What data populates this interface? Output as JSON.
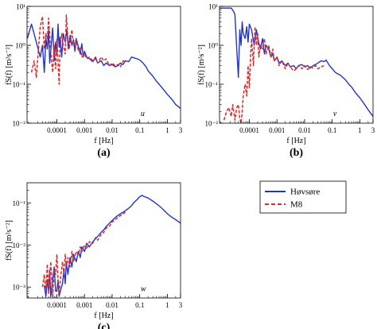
{
  "chart_data": [
    {
      "panel_id": "a",
      "panel_label": "(a)",
      "type": "line",
      "scale": "log-log",
      "xlabel": "f [Hz]",
      "ylabel": "fS(f) [m²s⁻²]",
      "annotation": "u",
      "xlim": [
        8.3e-06,
        3
      ],
      "ylim": [
        0.01,
        10
      ],
      "xticks": [
        0.0001,
        0.001,
        0.01,
        0.1,
        1,
        3
      ],
      "xtick_labels": [
        "0.0001",
        "0.001",
        "0.01",
        "0.1",
        "1",
        "3"
      ],
      "yticks": [
        0.01,
        0.1,
        1,
        10
      ],
      "ytick_labels": [
        "10⁻²",
        "10⁻¹",
        "10⁰",
        "10¹"
      ],
      "series": [
        {
          "name": "Høvsøre",
          "color": "#1f35c7",
          "style": "solid",
          "x": [
            8.5e-06,
            1.2e-05,
            1.8e-05,
            2.5e-05,
            3e-05,
            3.5e-05,
            4e-05,
            4.5e-05,
            5e-05,
            5.5e-05,
            6e-05,
            7e-05,
            8e-05,
            9e-05,
            0.0001,
            0.00011,
            0.00012,
            0.00013,
            0.00015,
            0.00017,
            0.0002,
            0.00023,
            0.00026,
            0.0003,
            0.00035,
            0.0004,
            0.00045,
            0.0005,
            0.0006,
            0.0007,
            0.0008,
            0.0009,
            0.001,
            0.0012,
            0.0015,
            0.002,
            0.0025,
            0.003,
            0.004,
            0.005,
            0.006,
            0.008,
            0.01,
            0.013,
            0.016,
            0.02,
            0.025,
            0.03,
            0.04,
            0.05,
            0.06,
            0.08,
            0.1,
            0.13,
            0.17,
            0.2,
            0.3,
            0.4,
            0.5,
            0.7,
            1,
            1.5,
            2,
            3
          ],
          "y": [
            1.5,
            3.5,
            1.2,
            0.5,
            1.0,
            0.2,
            1.5,
            0.8,
            2.5,
            0.35,
            0.7,
            2.8,
            0.4,
            1.2,
            0.6,
            3.5,
            0.9,
            1.6,
            0.5,
            2.0,
            1.2,
            2.5,
            0.8,
            1.8,
            1.0,
            1.4,
            0.7,
            1.5,
            0.9,
            0.6,
            1.1,
            0.5,
            0.7,
            0.5,
            0.45,
            0.38,
            0.5,
            0.35,
            0.4,
            0.3,
            0.35,
            0.3,
            0.32,
            0.28,
            0.3,
            0.35,
            0.32,
            0.4,
            0.38,
            0.5,
            0.48,
            0.45,
            0.42,
            0.35,
            0.28,
            0.22,
            0.16,
            0.12,
            0.1,
            0.075,
            0.055,
            0.04,
            0.03,
            0.024
          ]
        },
        {
          "name": "M8",
          "color": "#d92b2b",
          "style": "dashed",
          "x": [
            1.2e-05,
            1.5e-05,
            1.8e-05,
            2.2e-05,
            2.5e-05,
            3e-05,
            3.5e-05,
            4e-05,
            4.5e-05,
            5e-05,
            6e-05,
            7e-05,
            8e-05,
            9e-05,
            0.0001,
            0.00011,
            0.00012,
            0.00013,
            0.00015,
            0.00017,
            0.0002,
            0.00022,
            0.00025,
            0.00028,
            0.0003,
            0.00035,
            0.0004,
            0.0005,
            0.0006,
            0.0007,
            0.0008,
            0.001,
            0.0012,
            0.0015,
            0.002,
            0.0025,
            0.003,
            0.004,
            0.005,
            0.006,
            0.008,
            0.01,
            0.013,
            0.016,
            0.02,
            0.025,
            0.03
          ],
          "y": [
            0.2,
            0.4,
            0.15,
            1.0,
            3.0,
            5.5,
            0.8,
            2.0,
            1.5,
            5.0,
            0.7,
            0.2,
            1.0,
            0.25,
            1.5,
            0.35,
            0.1,
            0.9,
            2.0,
            1.0,
            0.6,
            6.0,
            1.5,
            0.8,
            1.2,
            2.5,
            1.0,
            1.4,
            0.7,
            0.9,
            0.5,
            0.6,
            0.45,
            0.5,
            0.4,
            0.45,
            0.35,
            0.5,
            0.4,
            0.45,
            0.3,
            0.35,
            0.3,
            0.32,
            0.28,
            0.4,
            0.38
          ]
        }
      ]
    },
    {
      "panel_id": "b",
      "panel_label": "(b)",
      "type": "line",
      "scale": "log-log",
      "xlabel": "f [Hz]",
      "ylabel": "fS(f) [m²s⁻²]",
      "annotation": "v",
      "xlim": [
        8.3e-06,
        3
      ],
      "ylim": [
        0.01,
        10
      ],
      "xticks": [
        0.0001,
        0.001,
        0.01,
        0.1,
        1,
        3
      ],
      "xtick_labels": [
        "0.0001",
        "0.001",
        "0.01",
        "0.1",
        "1",
        "3"
      ],
      "yticks": [
        0.01,
        0.1,
        1,
        10
      ],
      "ytick_labels": [
        "10⁻²",
        "10⁻¹",
        "10⁰",
        "10¹"
      ],
      "series": [
        {
          "name": "Høvsøre",
          "color": "#1f35c7",
          "style": "solid",
          "x": [
            8.5e-06,
            1.2e-05,
            1.5e-05,
            1.8e-05,
            2.2e-05,
            2.5e-05,
            2.8e-05,
            3e-05,
            3.5e-05,
            4e-05,
            4.5e-05,
            5e-05,
            5.5e-05,
            6e-05,
            7e-05,
            8e-05,
            9e-05,
            0.0001,
            0.00012,
            0.00015,
            0.00018,
            0.0002,
            0.00025,
            0.0003,
            0.00035,
            0.0004,
            0.0005,
            0.0006,
            0.0007,
            0.0008,
            0.001,
            0.0012,
            0.0015,
            0.002,
            0.0025,
            0.003,
            0.004,
            0.005,
            0.006,
            0.008,
            0.01,
            0.013,
            0.016,
            0.02,
            0.025,
            0.03,
            0.04,
            0.05,
            0.06,
            0.07,
            0.08,
            0.1,
            0.13,
            0.17,
            0.2,
            0.3,
            0.4,
            0.5,
            0.7,
            1,
            1.5,
            2,
            3
          ],
          "y": [
            9,
            9,
            9,
            9,
            9,
            8,
            7,
            6,
            0.8,
            0.15,
            2.5,
            1.0,
            4.0,
            2.0,
            1.5,
            3.0,
            1.2,
            3.5,
            2.5,
            1.0,
            2.5,
            1.5,
            0.8,
            1.5,
            0.6,
            1.0,
            0.8,
            0.5,
            0.6,
            0.4,
            0.5,
            0.35,
            0.4,
            0.3,
            0.35,
            0.28,
            0.3,
            0.25,
            0.3,
            0.32,
            0.28,
            0.3,
            0.26,
            0.3,
            0.32,
            0.35,
            0.4,
            0.38,
            0.42,
            0.35,
            0.3,
            0.25,
            0.2,
            0.18,
            0.17,
            0.13,
            0.1,
            0.085,
            0.06,
            0.045,
            0.03,
            0.022,
            0.015
          ]
        },
        {
          "name": "M8",
          "color": "#d92b2b",
          "style": "dashed",
          "x": [
            1.2e-05,
            1.5e-05,
            1.8e-05,
            2.2e-05,
            2.5e-05,
            3e-05,
            3.5e-05,
            4e-05,
            4.5e-05,
            5e-05,
            5.5e-05,
            6e-05,
            7e-05,
            8e-05,
            9e-05,
            0.0001,
            0.00011,
            0.00012,
            0.00014,
            0.00016,
            0.00018,
            0.0002,
            0.00022,
            0.00025,
            0.0003,
            0.00035,
            0.0004,
            0.0005,
            0.0006,
            0.0007,
            0.0008,
            0.001,
            0.0012,
            0.0015,
            0.002,
            0.0025,
            0.003,
            0.004,
            0.005,
            0.006,
            0.008,
            0.01,
            0.013,
            0.016,
            0.02,
            0.025,
            0.03,
            0.04,
            0.05
          ],
          "y": [
            0.012,
            0.02,
            0.025,
            0.015,
            0.03,
            0.012,
            0.025,
            0.03,
            0.013,
            0.01,
            0.02,
            0.05,
            0.1,
            0.05,
            0.3,
            0.08,
            0.5,
            1.5,
            0.3,
            3.0,
            1.0,
            2.0,
            0.5,
            1.0,
            0.8,
            1.5,
            0.6,
            1.0,
            0.5,
            0.8,
            0.4,
            0.5,
            0.3,
            0.4,
            0.25,
            0.35,
            0.28,
            0.22,
            0.25,
            0.3,
            0.25,
            0.3,
            0.24,
            0.28,
            0.26,
            0.3,
            0.25,
            0.28,
            0.3
          ]
        }
      ]
    },
    {
      "panel_id": "c",
      "panel_label": "(c)",
      "type": "line",
      "scale": "log-log",
      "xlabel": "f [Hz]",
      "ylabel": "fS(f) [m²s⁻²]",
      "annotation": "w",
      "xlim": [
        8.3e-06,
        3
      ],
      "ylim": [
        0.00055,
        0.3
      ],
      "xticks": [
        0.0001,
        0.001,
        0.01,
        0.1,
        1,
        3
      ],
      "xtick_labels": [
        "0.0001",
        "0.001",
        "0.01",
        "0.1",
        "1",
        "3"
      ],
      "yticks": [
        0.001,
        0.01,
        0.1
      ],
      "ytick_labels": [
        "10⁻³",
        "10⁻²",
        "10⁻¹"
      ],
      "series": [
        {
          "name": "Høvsøre",
          "color": "#1f35c7",
          "style": "solid",
          "x": [
            3.5e-05,
            4e-05,
            4.5e-05,
            5e-05,
            5.5e-05,
            6e-05,
            7e-05,
            8e-05,
            9e-05,
            0.0001,
            0.00011,
            0.00012,
            0.00014,
            0.00016,
            0.00018,
            0.0002,
            0.00022,
            0.00025,
            0.0003,
            0.00035,
            0.0004,
            0.0005,
            0.0006,
            0.0007,
            0.0008,
            0.001,
            0.0012,
            0.0015,
            0.002,
            0.0025,
            0.003,
            0.004,
            0.005,
            0.006,
            0.008,
            0.01,
            0.013,
            0.016,
            0.02,
            0.025,
            0.03,
            0.04,
            0.05,
            0.06,
            0.08,
            0.1,
            0.12,
            0.15,
            0.2,
            0.3,
            0.5,
            0.7,
            1,
            1.5,
            2,
            3
          ],
          "y": [
            0.0011,
            0.0006,
            0.0015,
            0.0008,
            0.0025,
            0.0006,
            0.0015,
            0.003,
            0.0008,
            0.0008,
            0.0015,
            0.0006,
            0.0009,
            0.0012,
            0.0025,
            0.0012,
            0.004,
            0.002,
            0.005,
            0.003,
            0.006,
            0.004,
            0.007,
            0.005,
            0.009,
            0.007,
            0.011,
            0.009,
            0.012,
            0.014,
            0.016,
            0.02,
            0.023,
            0.027,
            0.033,
            0.038,
            0.045,
            0.05,
            0.055,
            0.06,
            0.065,
            0.075,
            0.085,
            0.1,
            0.12,
            0.14,
            0.15,
            0.14,
            0.13,
            0.11,
            0.085,
            0.07,
            0.055,
            0.045,
            0.04,
            0.033
          ]
        },
        {
          "name": "M8",
          "color": "#d92b2b",
          "style": "dashed",
          "x": [
            3e-05,
            3.5e-05,
            4e-05,
            4.5e-05,
            5e-05,
            5.5e-05,
            6e-05,
            7e-05,
            8e-05,
            9e-05,
            0.0001,
            0.00011,
            0.00012,
            0.00014,
            0.00016,
            0.00018,
            0.0002,
            0.00022,
            0.00025,
            0.0003,
            0.00035,
            0.0004,
            0.0005,
            0.0006,
            0.0007,
            0.0008,
            0.001,
            0.0012,
            0.0015,
            0.002,
            0.0025,
            0.003,
            0.004,
            0.005,
            0.006,
            0.008,
            0.01,
            0.013,
            0.016,
            0.02,
            0.025,
            0.03
          ],
          "y": [
            0.001,
            0.002,
            0.0008,
            0.0035,
            0.0007,
            0.0015,
            0.004,
            0.0006,
            0.0025,
            0.002,
            0.006,
            0.0015,
            0.0007,
            0.002,
            0.004,
            0.002,
            0.006,
            0.003,
            0.005,
            0.003,
            0.007,
            0.004,
            0.007,
            0.006,
            0.009,
            0.007,
            0.01,
            0.008,
            0.012,
            0.011,
            0.015,
            0.013,
            0.018,
            0.02,
            0.025,
            0.028,
            0.035,
            0.04,
            0.045,
            0.05,
            0.055,
            0.06
          ]
        }
      ]
    }
  ],
  "legend": {
    "items": [
      {
        "label": "Høvsøre",
        "color": "#1f35c7",
        "style": "solid"
      },
      {
        "label": "M8",
        "color": "#d92b2b",
        "style": "dashed"
      }
    ]
  }
}
